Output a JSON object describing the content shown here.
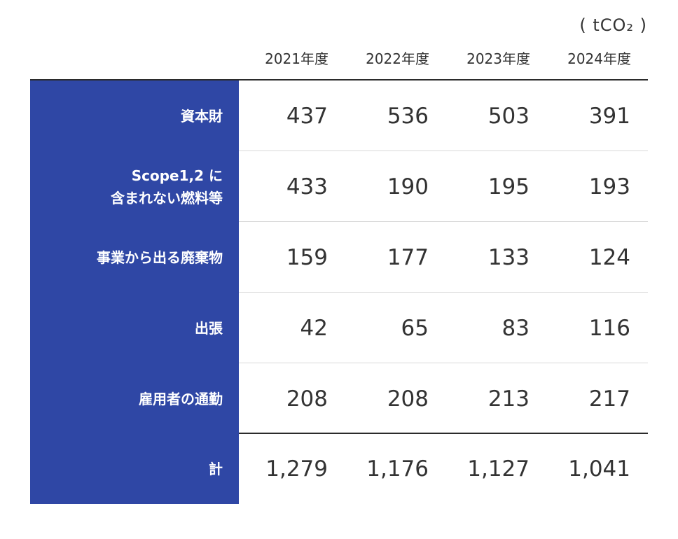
{
  "unit": "( tCO₂ )",
  "years": [
    "2021年度",
    "2022年度",
    "2023年度",
    "2024年度"
  ],
  "rows": [
    {
      "label_line1": "資本財",
      "label_line2": "",
      "values": [
        "437",
        "536",
        "503",
        "391"
      ]
    },
    {
      "label_line1": "Scope1,2 に",
      "label_line2": "含まれない燃料等",
      "values": [
        "433",
        "190",
        "195",
        "193"
      ]
    },
    {
      "label_line1": "事業から出る廃棄物",
      "label_line2": "",
      "values": [
        "159",
        "177",
        "133",
        "124"
      ]
    },
    {
      "label_line1": "出張",
      "label_line2": "",
      "values": [
        "42",
        "65",
        "83",
        "116"
      ]
    },
    {
      "label_line1": "雇用者の通勤",
      "label_line2": "",
      "values": [
        "208",
        "208",
        "213",
        "217"
      ]
    },
    {
      "label_line1": "計",
      "label_line2": "",
      "values": [
        "1,279",
        "1,176",
        "1,127",
        "1,041"
      ]
    }
  ],
  "colors": {
    "label_background": "#2f47a5",
    "text": "#333333",
    "divider": "#d9d9d9"
  }
}
